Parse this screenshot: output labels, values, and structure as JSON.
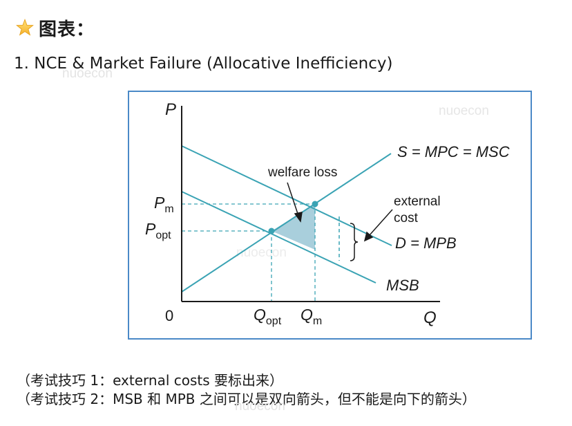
{
  "header": {
    "icon": "star-icon",
    "title": "图表："
  },
  "subtitle": "1. NCE & Market Failure (Allocative Inefficiency)",
  "watermark": "nuoecon",
  "diagram": {
    "y_axis": "P",
    "x_axis": "Q",
    "origin": "0",
    "p_m": {
      "main": "P",
      "sub": "m"
    },
    "p_opt": {
      "main": "P",
      "sub": "opt"
    },
    "q_opt": {
      "main": "Q",
      "sub": "opt"
    },
    "q_m": {
      "main": "Q",
      "sub": "m"
    },
    "supply": "S = MPC = MSC",
    "demand": "D = MPB",
    "msb": "MSB",
    "welfare_loss": "welfare loss",
    "external_cost_1": "external",
    "external_cost_2": "cost",
    "colors": {
      "lines": "#3aa3b4",
      "triangle": "#a9cfdc",
      "border": "#4a89c7"
    }
  },
  "notes": [
    "（考试技巧 1：external costs 要标出来）",
    "（考试技巧 2：MSB 和 MPB 之间可以是双向箭头，但不能是向下的箭头）"
  ]
}
